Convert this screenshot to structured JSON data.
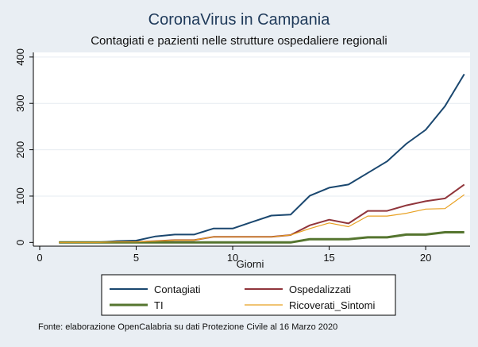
{
  "chart_data": {
    "type": "line",
    "title": "CoronaVirus in Campania",
    "subtitle": "Contagiati e pazienti nelle strutture ospedaliere regionali",
    "xlabel": "Giorni",
    "ylabel": "",
    "xlim": [
      0,
      22.3
    ],
    "ylim": [
      -8,
      410
    ],
    "xticks": [
      0,
      5,
      10,
      15,
      20
    ],
    "yticks": [
      0,
      100,
      200,
      300,
      400
    ],
    "grid": "horizontal",
    "legend_position": "bottom",
    "note": "Fonte: elaborazione OpenCalabria su dati Protezione Civile al 16 Marzo 2020",
    "x": [
      1,
      2,
      3,
      4,
      5,
      6,
      7,
      8,
      9,
      10,
      11,
      12,
      13,
      14,
      15,
      16,
      17,
      18,
      19,
      20,
      21,
      22
    ],
    "series": [
      {
        "name": "Contagiati",
        "color": "#1a476f",
        "width": 2,
        "values": [
          0,
          0,
          0,
          3,
          4,
          13,
          17,
          17,
          30,
          30,
          44,
          58,
          60,
          101,
          118,
          125,
          150,
          175,
          213,
          243,
          294,
          363
        ]
      },
      {
        "name": "Ospedalizzati",
        "color": "#90353b",
        "width": 2,
        "values": [
          0,
          0,
          0,
          1,
          1,
          3,
          5,
          5,
          12,
          12,
          12,
          12,
          16,
          37,
          49,
          41,
          68,
          68,
          80,
          89,
          95,
          125
        ]
      },
      {
        "name": "TI",
        "color": "#55752f",
        "width": 3,
        "values": [
          0,
          0,
          0,
          0,
          0,
          0,
          0,
          0,
          0,
          0,
          0,
          0,
          0,
          7,
          7,
          7,
          11,
          11,
          17,
          17,
          22,
          22
        ]
      },
      {
        "name": "Ricoverati_Sintomi",
        "color": "#e8a020",
        "width": 1.2,
        "values": [
          0,
          0,
          0,
          1,
          1,
          3,
          5,
          5,
          12,
          12,
          12,
          12,
          16,
          30,
          42,
          34,
          57,
          57,
          63,
          72,
          73,
          103
        ]
      }
    ]
  }
}
